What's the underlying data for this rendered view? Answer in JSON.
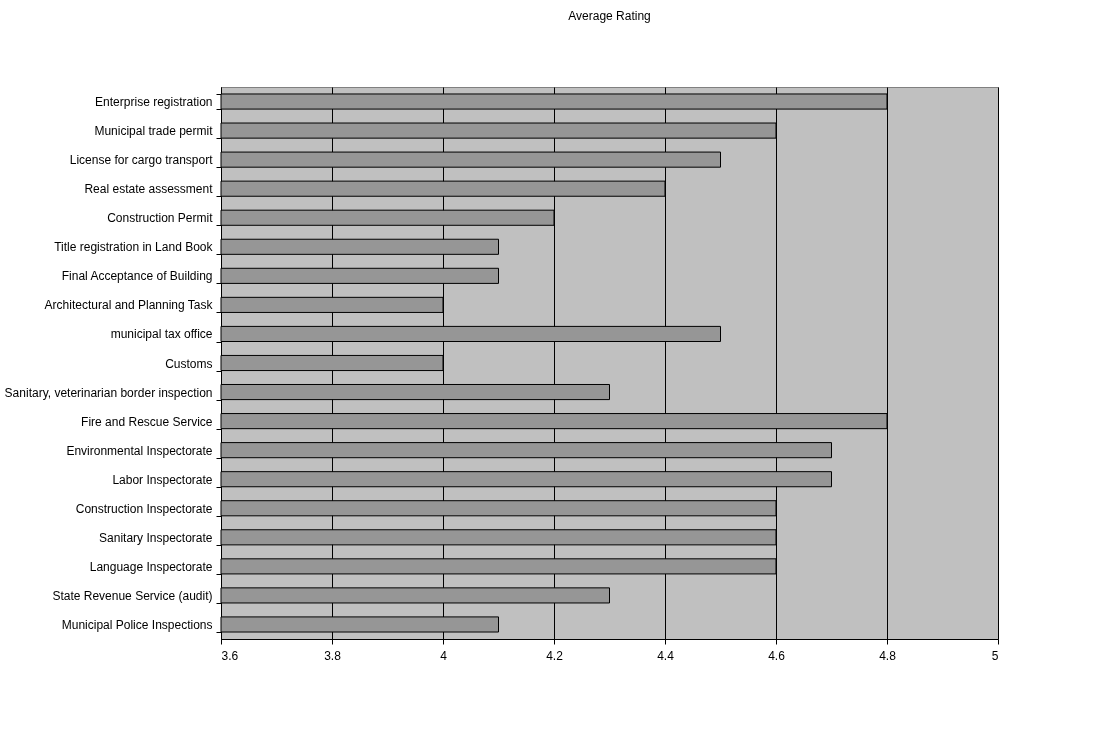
{
  "chart_data": {
    "type": "bar",
    "orientation": "horizontal",
    "title": "Average Rating",
    "categories": [
      "Enterprise registration",
      "Municipal trade permit",
      "License for cargo transport",
      "Real estate assessment",
      "Construction Permit",
      "Title registration in Land Book",
      "Final Acceptance of Building",
      "Architectural and Planning Task",
      "municipal tax office",
      "Customs",
      "Sanitary, veterinarian border inspection",
      "Fire and Rescue Service",
      "Environmental Inspectorate",
      "Labor Inspectorate",
      "Construction Inspectorate",
      "Sanitary Inspectorate",
      "Language Inspectorate",
      "State Revenue Service (audit)",
      "Municipal Police Inspections"
    ],
    "values": [
      4.8,
      4.6,
      4.5,
      4.4,
      4.2,
      4.1,
      4.1,
      4.0,
      4.5,
      4.0,
      4.3,
      4.8,
      4.7,
      4.7,
      4.6,
      4.6,
      4.6,
      4.3,
      4.1
    ],
    "color": "#969696",
    "xlim": [
      3.6,
      5
    ],
    "xticks": [
      3.6,
      3.8,
      4,
      4.2,
      4.4,
      4.6,
      4.8,
      5
    ],
    "grid": "x"
  }
}
